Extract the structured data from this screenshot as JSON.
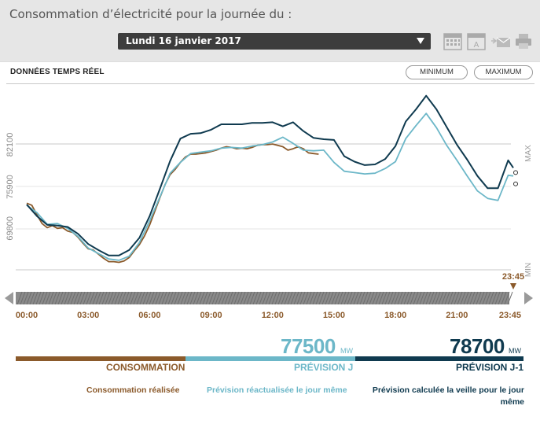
{
  "header": {
    "title": "Consommation d’électricité pour la journée du :",
    "selected_date": "Lundi 16 janvier 2017",
    "tools": [
      "calendar-icon",
      "day-calendar-icon",
      "email-icon",
      "print-icon"
    ]
  },
  "panel": {
    "realtime_label": "DONNÉES TEMPS RÉEL",
    "minimum_label": "MINIMUM",
    "maximum_label": "MAXIMUM"
  },
  "legend": {
    "consommation": {
      "label": "CONSOMMATION",
      "description": "Consommation réalisée",
      "color": "#8b5a2b"
    },
    "prevision_j": {
      "label": "PRÉVISION J",
      "value": "77500",
      "unit": "MW",
      "description": "Prévision réactualisée le jour même",
      "color": "#6cb7c8"
    },
    "prevision_j1": {
      "label": "PRÉVISION J-1",
      "value": "78700",
      "unit": "MW",
      "description": "Prévision calculée la veille pour le jour même",
      "color": "#0f3a4f"
    }
  },
  "chart_data": {
    "type": "line",
    "x_ticks": [
      "00:00",
      "03:00",
      "06:00",
      "09:00",
      "12:00",
      "15:00",
      "18:00",
      "21:00",
      "23:45"
    ],
    "y_ticks": [
      69800,
      75900,
      82100
    ],
    "side_labels": {
      "max": "MAX",
      "min": "MIN"
    },
    "cursor_label": "23:45",
    "x_unit": "hours",
    "y_unit": "MW",
    "ylim": [
      63700,
      91000
    ],
    "series": [
      {
        "name": "CONSOMMATION",
        "color": "#8b5a2b",
        "x": [
          0,
          0.25,
          0.5,
          0.75,
          1.0,
          1.25,
          1.5,
          1.75,
          2.0,
          2.25,
          2.5,
          2.75,
          3.0,
          3.25,
          3.5,
          3.75,
          4.0,
          4.25,
          4.5,
          4.75,
          5.0,
          5.25,
          5.5,
          5.75,
          6.0,
          6.25,
          6.5,
          6.75,
          7.0,
          7.25,
          7.5,
          7.75,
          8.0,
          8.25,
          8.5,
          8.75,
          9.0,
          9.25,
          9.5,
          9.75,
          10.0,
          10.25,
          10.5,
          10.75,
          11.0,
          11.25,
          11.5,
          11.75,
          12.0,
          12.25,
          12.5,
          12.75,
          13.0,
          13.25,
          13.5,
          13.75,
          14.0,
          14.25
        ],
        "values": [
          73500,
          73200,
          71800,
          70500,
          69900,
          70200,
          69800,
          69900,
          69400,
          69200,
          68500,
          67600,
          66800,
          66600,
          66000,
          65400,
          64900,
          64900,
          64800,
          65000,
          65500,
          66500,
          67400,
          68700,
          70300,
          72300,
          74300,
          76200,
          77700,
          78500,
          79500,
          80300,
          80700,
          80700,
          80800,
          80900,
          81100,
          81300,
          81600,
          81800,
          81700,
          81500,
          81600,
          81500,
          81700,
          82000,
          82100,
          82100,
          82200,
          82000,
          81800,
          81300,
          81500,
          81800,
          81500,
          80900,
          80800,
          80700
        ]
      },
      {
        "name": "PRÉVISION J",
        "color": "#6cb7c8",
        "x": [
          0,
          0.5,
          1.0,
          1.5,
          2.0,
          2.5,
          3.0,
          3.5,
          4.0,
          4.5,
          5.0,
          5.5,
          6.0,
          6.5,
          7.0,
          7.5,
          8.0,
          8.5,
          9.0,
          9.5,
          10.0,
          10.5,
          11.0,
          11.5,
          12.0,
          12.5,
          13.0,
          13.5,
          14.0,
          14.5,
          15.0,
          15.5,
          16.0,
          16.5,
          17.0,
          17.5,
          18.0,
          18.5,
          19.0,
          19.5,
          20.0,
          20.5,
          21.0,
          21.5,
          22.0,
          22.5,
          23.0,
          23.5,
          23.75
        ],
        "values": [
          73200,
          72100,
          70400,
          70500,
          69800,
          68600,
          66900,
          66100,
          65300,
          65100,
          65700,
          67700,
          70900,
          74400,
          77900,
          79500,
          80800,
          81000,
          81200,
          81600,
          81700,
          81600,
          81900,
          82100,
          82500,
          83200,
          82300,
          81300,
          81200,
          81300,
          79500,
          78200,
          78000,
          77800,
          77900,
          78600,
          79600,
          83000,
          84900,
          86700,
          84600,
          82000,
          79800,
          77500,
          75300,
          74200,
          73900,
          77600,
          77500
        ]
      },
      {
        "name": "PRÉVISION J-1",
        "color": "#0f3a4f",
        "x": [
          0,
          0.5,
          1.0,
          1.5,
          2.0,
          2.5,
          3.0,
          3.5,
          4.0,
          4.5,
          5.0,
          5.5,
          6.0,
          6.5,
          7.0,
          7.5,
          8.0,
          8.5,
          9.0,
          9.5,
          10.0,
          10.5,
          11.0,
          11.5,
          12.0,
          12.5,
          13.0,
          13.5,
          14.0,
          14.5,
          15.0,
          15.5,
          16.0,
          16.5,
          17.0,
          17.5,
          18.0,
          18.5,
          19.0,
          19.5,
          20.0,
          20.5,
          21.0,
          21.5,
          22.0,
          22.5,
          23.0,
          23.5,
          23.75
        ],
        "values": [
          73300,
          71600,
          70300,
          70200,
          70000,
          69000,
          67500,
          66600,
          65800,
          65800,
          66600,
          68400,
          71600,
          75600,
          79700,
          83000,
          83700,
          83800,
          84300,
          85100,
          85100,
          85100,
          85300,
          85300,
          85400,
          84800,
          85400,
          84100,
          83100,
          82900,
          82800,
          80400,
          79600,
          79100,
          79200,
          80000,
          81900,
          85500,
          87300,
          89300,
          87300,
          84700,
          82100,
          79900,
          77500,
          75700,
          75700,
          79800,
          78700
        ]
      }
    ]
  }
}
